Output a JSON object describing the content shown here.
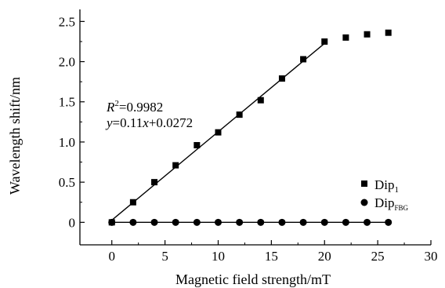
{
  "chart_data": {
    "type": "scatter",
    "xlabel": "Magnetic field strength/mT",
    "ylabel": "Wavelength shift/nm",
    "xlim": [
      -3,
      30
    ],
    "ylim": [
      -0.28,
      2.65
    ],
    "xticks": [
      0,
      5,
      10,
      15,
      20,
      25,
      30
    ],
    "yticks": [
      0,
      0.5,
      1.0,
      1.5,
      2.0,
      2.5
    ],
    "xtick_labels": [
      "0",
      "5",
      "10",
      "15",
      "20",
      "25",
      "30"
    ],
    "ytick_labels": [
      "0",
      "0.5",
      "1.0",
      "1.5",
      "2.0",
      "2.5"
    ],
    "grid": false,
    "legend_position": "bottom-right",
    "series": [
      {
        "name": "Dip1",
        "name_base": "Dip",
        "name_sub": "1",
        "marker": "square",
        "color": "#000000",
        "x": [
          0,
          2,
          4,
          6,
          8,
          10,
          12,
          14,
          16,
          18,
          20,
          22,
          24,
          26
        ],
        "y": [
          0.0,
          0.25,
          0.5,
          0.71,
          0.96,
          1.12,
          1.34,
          1.52,
          1.79,
          2.03,
          2.25,
          2.3,
          2.34,
          2.36
        ]
      },
      {
        "name": "DipFBG",
        "name_base": "Dip",
        "name_sub": "FBG",
        "marker": "circle",
        "color": "#000000",
        "x": [
          0,
          2,
          4,
          6,
          8,
          10,
          12,
          14,
          16,
          18,
          20,
          22,
          24,
          26
        ],
        "y": [
          0,
          0,
          0,
          0,
          0,
          0,
          0,
          0,
          0,
          0,
          0,
          0,
          0,
          0
        ]
      }
    ],
    "fit_lines": [
      {
        "x": [
          0,
          20
        ],
        "y": [
          0.0272,
          2.2272
        ],
        "slope": 0.11,
        "intercept": 0.0272
      },
      {
        "x": [
          0,
          26
        ],
        "y": [
          0,
          0
        ]
      }
    ],
    "annotations": {
      "r2": {
        "var": "R",
        "sup": "2",
        "value": "=0.9982"
      },
      "eq": {
        "var_y": "y",
        "mid": "=0.11",
        "var_x": "x",
        "tail": "+0.0272"
      }
    }
  }
}
